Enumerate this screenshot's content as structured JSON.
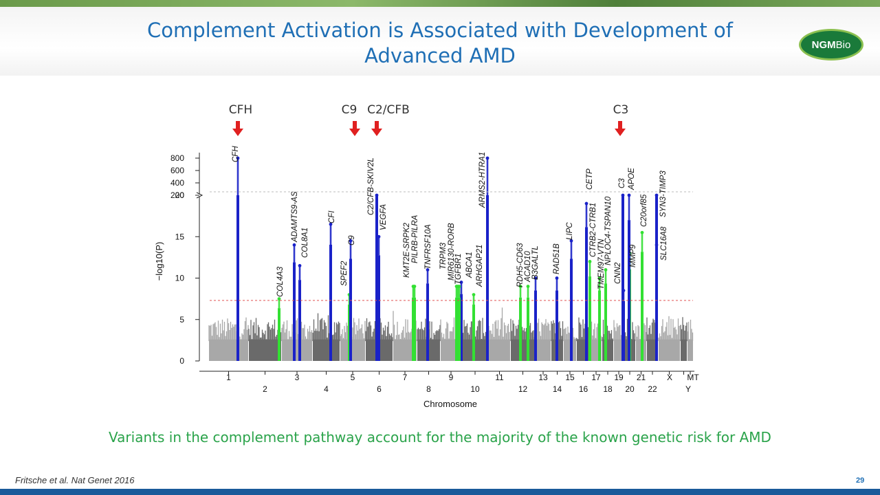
{
  "slide": {
    "title": "Complement Activation is Associated with Development of Advanced AMD",
    "logo_text_bold": "NGM",
    "logo_text": "Bio",
    "subtitle": "Variants in the complement pathway account for the majority of the known genetic risk for AMD",
    "citation": "Fritsche et al. Nat Genet 2016",
    "page_number": "29"
  },
  "colors": {
    "title": "#1f6fb5",
    "subtitle": "#2aa34a",
    "arrow": "#e02020",
    "highlight_blue": "#1a22c8",
    "highlight_green": "#33e033",
    "gray_light": "#a8a8a8",
    "gray_dark": "#6a6a6a",
    "threshold_red": "#e05050"
  },
  "callouts": [
    {
      "label": "CFH",
      "chr": "1"
    },
    {
      "label": "C9",
      "chr": "5"
    },
    {
      "label": "C2/CFB",
      "chr": "6"
    },
    {
      "label": "C3",
      "chr": "19"
    }
  ],
  "chart_data": {
    "type": "scatter",
    "subtype": "manhattan",
    "xlabel": "Chromosome",
    "ylabel": "−log10(P)",
    "y_ticks": [
      "0",
      "5",
      "10",
      "15",
      "20",
      "200",
      "400",
      "600",
      "800"
    ],
    "y_axis_break": "between 20 and 200",
    "significance_line": 7.3,
    "chromosomes": [
      "1",
      "2",
      "3",
      "4",
      "5",
      "6",
      "7",
      "8",
      "9",
      "10",
      "11",
      "12",
      "13",
      "14",
      "15",
      "16",
      "17",
      "18",
      "19",
      "20",
      "21",
      "22",
      "X",
      "Y",
      "MT"
    ],
    "loci": [
      {
        "gene": "CFH",
        "chr": "1",
        "peak_log10p": 800,
        "color": "blue"
      },
      {
        "gene": "COL4A3",
        "chr": "2",
        "peak_log10p": 7.5,
        "color": "green"
      },
      {
        "gene": "ADAMTS9-AS",
        "chr": "3",
        "peak_log10p": 14,
        "color": "blue"
      },
      {
        "gene": "COL8A1",
        "chr": "3",
        "peak_log10p": 11.5,
        "color": "blue"
      },
      {
        "gene": "CFI",
        "chr": "4",
        "peak_log10p": 16.5,
        "color": "blue"
      },
      {
        "gene": "SPEF2",
        "chr": "5",
        "peak_log10p": 8,
        "color": "green"
      },
      {
        "gene": "C9",
        "chr": "5",
        "peak_log10p": 14.5,
        "color": "blue"
      },
      {
        "gene": "C2/CFB-SKIV2L",
        "chr": "6",
        "peak_log10p": 200,
        "color": "blue"
      },
      {
        "gene": "VEGFA",
        "chr": "6",
        "peak_log10p": 15,
        "color": "blue"
      },
      {
        "gene": "KMT2E-SRPK2",
        "chr": "7",
        "peak_log10p": 9,
        "color": "green"
      },
      {
        "gene": "PILRB-PILRA",
        "chr": "7",
        "peak_log10p": 9,
        "color": "green"
      },
      {
        "gene": "TNFRSF10A",
        "chr": "8",
        "peak_log10p": 11,
        "color": "blue"
      },
      {
        "gene": "TRPM3",
        "chr": "9",
        "peak_log10p": 9,
        "color": "green"
      },
      {
        "gene": "MIR6130-RORB",
        "chr": "9",
        "peak_log10p": 9,
        "color": "green"
      },
      {
        "gene": "TGFBR1",
        "chr": "9",
        "peak_log10p": 9.5,
        "color": "blue"
      },
      {
        "gene": "ABCA1",
        "chr": "9",
        "peak_log10p": 9,
        "color": "green"
      },
      {
        "gene": "ARHGAP21",
        "chr": "10",
        "peak_log10p": 8,
        "color": "green"
      },
      {
        "gene": "ARMS2-HTRA1",
        "chr": "10",
        "peak_log10p": 800,
        "color": "blue"
      },
      {
        "gene": "RDH5-CD63",
        "chr": "12",
        "peak_log10p": 9,
        "color": "green"
      },
      {
        "gene": "ACAD10",
        "chr": "12",
        "peak_log10p": 9,
        "color": "green"
      },
      {
        "gene": "B3GALTL",
        "chr": "13",
        "peak_log10p": 10,
        "color": "blue"
      },
      {
        "gene": "RAD51B",
        "chr": "14",
        "peak_log10p": 10,
        "color": "blue"
      },
      {
        "gene": "LIPC",
        "chr": "15",
        "peak_log10p": 14.5,
        "color": "blue"
      },
      {
        "gene": "CETP",
        "chr": "16",
        "peak_log10p": 19,
        "color": "blue"
      },
      {
        "gene": "CTRB2-CTRB1",
        "chr": "16",
        "peak_log10p": 12,
        "color": "green"
      },
      {
        "gene": "TMEM97-VTN",
        "chr": "17",
        "peak_log10p": 10,
        "color": "green"
      },
      {
        "gene": "NPLOC4-TSPAN10",
        "chr": "17",
        "peak_log10p": 11,
        "color": "green"
      },
      {
        "gene": "CNN2",
        "chr": "19",
        "peak_log10p": 8.5,
        "color": "blue"
      },
      {
        "gene": "C3",
        "chr": "19",
        "peak_log10p": 200,
        "color": "blue"
      },
      {
        "gene": "MMP9",
        "chr": "20",
        "peak_log10p": 13,
        "color": "green"
      },
      {
        "gene": "APOE",
        "chr": "19",
        "peak_log10p": 20,
        "color": "blue"
      },
      {
        "gene": "C20orf85",
        "chr": "20",
        "peak_log10p": 15.5,
        "color": "green"
      },
      {
        "gene": "SLC16A8",
        "chr": "22",
        "peak_log10p": 14,
        "color": "blue"
      },
      {
        "gene": "SYN3-TIMP3",
        "chr": "22",
        "peak_log10p": 200,
        "color": "blue"
      }
    ]
  }
}
